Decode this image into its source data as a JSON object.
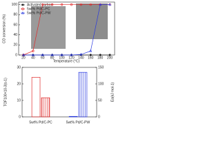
{
  "charts": [
    {
      "type": "line",
      "ylabel": "CO conversion (%)",
      "xlabel": "Temperature (°C)",
      "x": [
        20,
        40,
        60,
        80,
        100,
        120,
        140,
        160,
        180,
        200
      ],
      "xlim": [
        10,
        210
      ],
      "xticks": [
        20,
        40,
        60,
        80,
        100,
        120,
        140,
        160,
        180,
        200
      ],
      "ylim": [
        0,
        105
      ],
      "yticks": [
        0,
        20,
        40,
        60,
        80,
        100
      ],
      "legend": "upper-left",
      "series": [
        {
          "name": "Activated carbon",
          "color": "#222222",
          "marker": "square",
          "values": [
            0,
            0,
            0,
            0,
            0,
            0,
            0,
            0,
            0,
            0
          ]
        },
        {
          "name": "5wt% Pd/C-PC",
          "color": "#e02828",
          "marker": "circle",
          "values": [
            0,
            8,
            100,
            100,
            100,
            100,
            100,
            100,
            100,
            100
          ]
        },
        {
          "name": "5wt% Pd/C-PW",
          "color": "#2838e0",
          "marker": "triangle",
          "values": [
            0,
            0,
            0,
            0,
            0,
            0,
            1,
            8,
            100,
            100
          ]
        }
      ]
    },
    {
      "type": "bar",
      "ylabel": "TOF100×10-3(s-1)",
      "y2label": "Ea(kJ mol-1)",
      "categories": [
        "5wt% Pd/C-PC",
        "5wt% Pd/C-PW"
      ],
      "ylim": [
        0,
        30
      ],
      "yticks": [
        0,
        10,
        20,
        30
      ],
      "y2lim": [
        0,
        150
      ],
      "y2ticks": [
        0,
        50,
        100,
        150
      ],
      "series": [
        {
          "colors": [
            "#e02828",
            "#2838e0"
          ],
          "values": [
            24,
            0.3
          ]
        },
        {
          "colors": [
            "#e02828",
            "#2838e0"
          ],
          "axis": "y2",
          "hatch": true,
          "values": [
            58,
            135
          ]
        }
      ]
    }
  ]
}
